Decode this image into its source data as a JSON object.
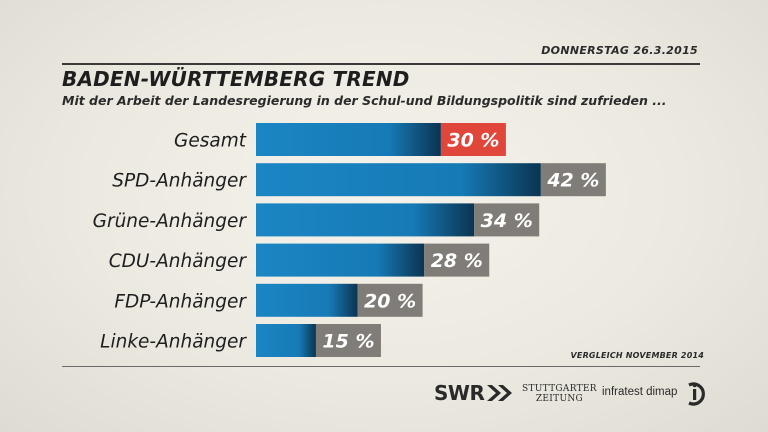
{
  "header": {
    "date": "DONNERSTAG  26.3.2015",
    "title": "BADEN-WÜRTTEMBERG TREND",
    "subtitle": "Mit der Arbeit der Landesregierung in der Schul-und Bildungspolitik sind zufrieden ..."
  },
  "chart_data": {
    "type": "bar",
    "orientation": "horizontal",
    "categories": [
      "Gesamt",
      "SPD-Anhänger",
      "Grüne-Anhänger",
      "CDU-Anhänger",
      "FDP-Anhänger",
      "Linke-Anhänger"
    ],
    "values": [
      30,
      42,
      34,
      28,
      20,
      15
    ],
    "value_labels": [
      "30 %",
      "42 %",
      "34 %",
      "28 %",
      "20 %",
      "15 %"
    ],
    "xlim": [
      0,
      50
    ],
    "colors": {
      "bar": "#1a7fbd",
      "bar_dark": "#0c3a5c",
      "label_box": "#807c78",
      "highlight_box": "#e0473a",
      "text": "#1e1e1e"
    }
  },
  "footer": {
    "note": "VERGLEICH NOVEMBER 2014",
    "swr": "SWR",
    "stuttgarter_line1": "STUTTGARTER",
    "stuttgarter_line2": "ZEITUNG",
    "infratest": "infratest dimap",
    "icons": [
      "swr-arrows-icon",
      "infratest-logo-icon"
    ]
  }
}
